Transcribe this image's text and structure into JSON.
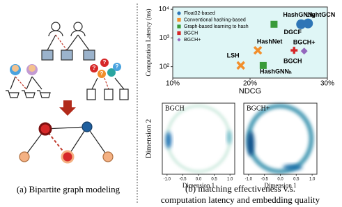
{
  "panel_a": {
    "query_mark": "?",
    "caption": "(a) Bipartite graph modeling"
  },
  "panel_b": {
    "caption_lines": [
      "(b) matching effectiveness v.s.",
      "computation latency and embedding quality"
    ]
  },
  "chart_data": [
    {
      "type": "scatter",
      "xlabel": "NDCG",
      "ylabel": "Computation Latency (ms)",
      "log_y": true,
      "background": "#dff6f6",
      "legend": "upper left",
      "xlim": [
        10,
        30
      ],
      "xticks": [
        {
          "value": 10,
          "label": "10%"
        },
        {
          "value": 20,
          "label": "20%"
        },
        {
          "value": 30,
          "label": "30%"
        }
      ],
      "ylim": [
        40,
        12000
      ],
      "yticks": [
        {
          "value": 100,
          "label": "10²"
        },
        {
          "value": 1000,
          "label": "10³"
        },
        {
          "value": 10000,
          "label": "10⁴"
        }
      ],
      "series": [
        {
          "name": "Float32-based",
          "color": "#2e75b6",
          "marker": "circle",
          "x": [
            26.6,
            27.5
          ],
          "values": [
            3000,
            3200
          ],
          "point_labels": [
            "DGCF",
            "LightGCN"
          ]
        },
        {
          "name": "Conventional hashing-based",
          "color": "#f28e2b",
          "marker": "x",
          "x": [
            18.8,
            21.0
          ],
          "values": [
            110,
            370
          ],
          "point_labels": [
            "LSH",
            "HashNet"
          ]
        },
        {
          "name": "Graph-based learning to hash",
          "color": "#3a9b3a",
          "marker": "square",
          "x": [
            21.7,
            23.1
          ],
          "values": [
            110,
            3000
          ],
          "point_labels": [
            "HashGNNₕ",
            "HashGNNₛ"
          ]
        },
        {
          "name": "BGCH",
          "color": "#d62728",
          "marker": "plus",
          "x": [
            25.7
          ],
          "values": [
            370
          ],
          "point_labels": [
            "BGCH"
          ]
        },
        {
          "name": "BGCH+",
          "color": "#9467bd",
          "marker": "diamond",
          "x": [
            27.0
          ],
          "values": [
            350
          ],
          "point_labels": [
            "BGCH+"
          ]
        }
      ]
    },
    {
      "type": "density",
      "title": "BGCH",
      "xlabel": "Dimension 1",
      "ylabel": "Dimension 2",
      "xlim": [
        -1.15,
        1.15
      ],
      "xticks": [
        {
          "value": -1,
          "label": "-1.0"
        },
        {
          "value": -0.5,
          "label": "-0.5"
        },
        {
          "value": 0,
          "label": "0.0"
        },
        0.5,
        {
          "value": 1,
          "label": "1.0"
        }
      ]
    },
    {
      "type": "density",
      "title": "BGCH+",
      "xlabel": "Dimension 1",
      "xlim": [
        -1.15,
        1.15
      ],
      "xticks": [
        {
          "value": -1,
          "label": "-1.0"
        },
        {
          "value": -0.5,
          "label": "-0.5"
        },
        {
          "value": 0,
          "label": "0.0"
        },
        0.5,
        {
          "value": 1,
          "label": "1.0"
        }
      ]
    }
  ]
}
